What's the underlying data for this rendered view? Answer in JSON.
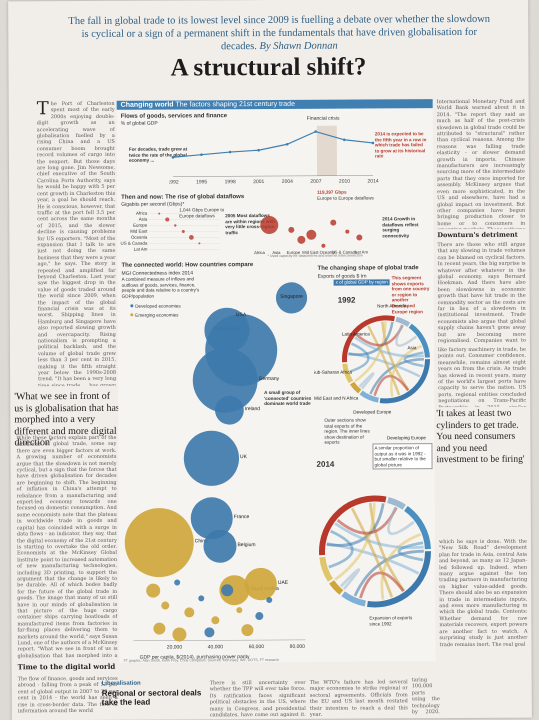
{
  "deck": {
    "line": "The fall in global trade to its lowest level since 2009 is fuelling a debate over whether the slowdown is cyclical or a sign of a permanent shift in the fundamentals that have driven globalisation for decades.",
    "byline": "By Shawn Donnan"
  },
  "headline": "A structural shift?",
  "columns": {
    "left_top": "he Port of Charleston spent most of the early 2000s enjoying double-digit growth as an accelerating wave of globalisation fuelled by a rising China and a US consumer boom brought record volumes of cargo into the seaport. But those days are long gone. Jim Newsome, chief executive of the South Carolina Ports Authority, says he would be happy with 5 per cent growth in Charleston this year, a goal he should reach. He is conscious, however, that traffic at the port fell 3.5 per cent across the same months of 2015, and the slower decline is causing problems for US exporters. \"Most of the expansion that I talk to are just not doing the same business that they were a year ago,\" he says. The story is repeated and amplified far beyond Charleston. Last year saw the biggest drop in the value of goods traded around the world since 2009, when the impact of the global financial crisis was at its worst. Shipping lines in Hamburg and Singapore have also reported slowing growth and overcapacity. Rising nationalism is prompting a political backlash, and the volume of global trade grew less than 3 per cent in 2015, making it the fifth straight year below the 1990s-2008 trend. \"It has been a very long time since trade ... has grown this weakly,\" says Robert Koopman, chief economist at the World Trade Organisation. Much of this recent feeble performance is down to the economic slowdown in China and the knock-on effect that the falling demand for raw materials has had on other emerging markets.",
    "left_bottom": "While these factors explain part of the weakness in global trade, some say there are even bigger factors at work. A growing number of economists argue that the slowdown is not merely cyclical, but a sign that the forces that have driven globalisation for decades are beginning to shift. The beginning of inflation in China's attempt to rebalance from a manufacturing and export-led economy towards one focused on domestic consumption. And some economists note that the plateau in worldwide trade in goods and capital has coincided with a surge in data flows - an indicator, they say, that the digital economy of the 21st century is starting to overtake the old order. Economists at the McKinsey Global Institute point to increased automation of new manufacturing technologies, including 3D printing, to support the argument that the change is likely to be durable. All of which bodes badly for the future of the global trade in goods. The image that many of us still have in our minds of globalisation is that picture of the huge cargo container ships carrying boatloads of manufactured items from factories in far-flung places delivering them to markets around the world,\" says Susan Lund, one of the authors of a McKinsey report. \"What we see in front of us is globalisation that has morphed into a very different and more digital direction.\"",
    "left_sub": "Time to the digital world",
    "left_tail": "The flow of finance, goods and services abroad - falling from a peak of 53 per cent of global output in 2007 to 39 per cent in 2014 - the world has seen a rise in cross-border data. The flow of information around the world",
    "right_top": "International Monetary Fund and World Bank warned about it in 2014. \"The report they said as much as half of the post-crisis slowdown in global trade could be attributed to \"structural\" rather than cyclical reasons. Among the reasons was falling trade elasticity - or slower demand growth in imports. Chinese manufacturers are increasingly sourcing more of the intermediate parts that they once imported for assembly. McKinsey argues that even more sophisticated, in the US and elsewhere, have had a global impact on investment. But other companies have begun bringing production closer to home or to consumers in emerging markets. Those patterns are apparent in the data, with the global flow of emerging-market trade in goods growing faster than trade between developed economies.",
    "right_sub": "Downturn's detriment",
    "right_mid": "There are those who still argue that any slowing in trade volumes can be blamed on cyclical factors. In recent years, the big surprise is whatever after whatever in the global economy, says Bernard Hoekman. And there have also been slowdowns in economic growth that have hit trade in the commodity sector as the costs are far in lieu of a slowdown in institutional investment. Trade economists also argue that global supply chains haven't gone away but are becoming more regionalised. Companies want to consider their options, and the shifting geography of US demand and supply suggests that a slowdown in world trade is unlikely to last.",
    "right_lower": "like factory machinery in trade, he points out. Consumer confidence, meanwhile, remains almost eight years on from the crisis. As trade has slowed in recent years, many of the world's largest ports have capacity to serve the nation. US ports, regional entities concluded negotiations on Trans-Pacific Partnership in 2015, similar efforts under way in Washington and Brussels and Asia. But any economist likely to take years to make the subject of intense scrutiny. Mr Koopman and others also point to a slowdown in global investment.",
    "right_tail": "which he says is done. With the \"New Silk Road\" development plan for trade in Asia, central Asia and beyond, as many as 12 Japan-led followed up. Indeed, when many argue against the ten trading partners in manufacturing on higher value-added goods. There should also be an expansion in trade in intermediate inputs, and even more manufacturing in which the global trade. Contents: Whether demand for raw materials recovers, export powers are another fact to watch. A surprising study is just another trade remains inert. The real goal",
    "bottom_mid": "taring 100,000 parts using the technology by 2020. Such innovations bring closer the day when companies make much greater use of the capacity to receive equipment not by container ship, but by digital file and a software-enabled 3D printer",
    "bottom_left": "There is still uncertainty over whether the TPP will ever take force. Its ratification faces significant political obstacles in the US, where many in Congress, and presidential candidates, have come out against it. The deal's unpopularity is in part a response to the perceived impact of trade on jobs.",
    "bottom_right": "The WTO's failure has led several major economies to strike regional or sectoral agreements. Officials from the EU and US last month restated their intention to reach a deal this year.",
    "liberalisation_kicker": "Liberalisation",
    "liberalisation_head": "Regional or sectoral deals take the lead"
  },
  "pullquotes": {
    "left": "'What we see in front of us is globalisation that has morphed into a very different and more digital direction'",
    "right": "'It takes at least two cylinders to get trade. You need consumers and you need investment to be firing'"
  },
  "graphic": {
    "header_main": "Changing world",
    "header_sub": "The factors shaping 21st century trade",
    "flows": {
      "title": "Flows of goods, services and finance",
      "subtitle": "% of global GDP",
      "crisis_label": "Financial crisis",
      "note_left": "For decades, trade grew at twice the rate of the global economy ...",
      "note_right": "2014 is expected to be the fifth year in a row in which trade has failed to grow at its historical rate",
      "years": [
        "1992",
        "1995",
        "1998",
        "2001",
        "2004",
        "2007",
        "2010",
        "2014"
      ],
      "values": [
        23,
        26,
        29,
        31,
        38,
        53,
        43,
        39
      ]
    },
    "datarise": {
      "title": "Then and now: The rise of global dataflows",
      "subtitle": "Gigabits per second (Gbps)*",
      "from_label": "1,044 Gbps Europe to Europe dataflows",
      "peak_label": "119,397 Gbps",
      "peak_note": "Europe to Europe dataflows",
      "note_2005": "2005 Most dataflows are within regions with very little cross-region traffic",
      "note_2014": "2014 Growth in dataflows reflect surging connectivity",
      "regions": [
        "Africa",
        "Asia",
        "Europe",
        "Mid East",
        "Oceania",
        "US & Canada",
        "Lat Am"
      ],
      "footnote": "* Used capacity for datacentres and internet interconnection"
    },
    "connected": {
      "title": "The connected world: How countries compare",
      "subtitle": "MGI Connectedness index 2014",
      "description": "A combined measure of inflows and outflows of goods, services, finance, people and data relative to a country's GDP/population",
      "legend_developed": "Developed economies",
      "legend_emerging": "Emerging economies",
      "xlabel": "GDP per capita, $(2014), purchasing power parity",
      "x_ticks": [
        "20,000",
        "40,000",
        "60,000",
        "80,000"
      ],
      "annotation": "A small group of 'connected' countries dominate world trade",
      "bubbles": [
        {
          "name": "Singapore",
          "group": "developed",
          "gdp_pc": 79000,
          "size": 0.32
        },
        {
          "name": "Netherlands",
          "group": "developed",
          "gdp_pc": 47000,
          "size": 0.55
        },
        {
          "name": "USA",
          "group": "developed",
          "gdp_pc": 54000,
          "size": 1.0
        },
        {
          "name": "Germany",
          "group": "developed",
          "gdp_pc": 46000,
          "size": 0.88
        },
        {
          "name": "Ireland",
          "group": "developed",
          "gdp_pc": 48000,
          "size": 0.28
        },
        {
          "name": "UK",
          "group": "developed",
          "gdp_pc": 39000,
          "size": 0.72
        },
        {
          "name": "China",
          "group": "emerging",
          "gdp_pc": 13000,
          "size": 0.95
        },
        {
          "name": "France",
          "group": "developed",
          "gdp_pc": 39000,
          "size": 0.5
        },
        {
          "name": "Belgium",
          "group": "developed",
          "gdp_pc": 43000,
          "size": 0.35
        },
        {
          "name": "Saudi Arabia",
          "group": "emerging",
          "gdp_pc": 50000,
          "size": 0.3
        },
        {
          "name": "UAE",
          "group": "emerging",
          "gdp_pc": 63000,
          "size": 0.34
        }
      ]
    },
    "changing_shape": {
      "title": "The changing shape of global trade",
      "subtitle": "Exports of goods $ trn",
      "sample_label": "x of global GDP by region",
      "year_1992": "1992",
      "year_2014": "2014",
      "note_segment": "This segment shows exports from one country or region to another Developed Europe region",
      "note_outer": "Outer sections show total exports of the region. The inner lines show destination of exports",
      "note_proportion": "A similar proportion of output as it was in 1992 - but smaller relative to the global picture",
      "expansion_label": "Expansion of exports since 1992",
      "regions": [
        "North America",
        "Latin America",
        "Sub-Saharan Africa",
        "Mid East and N Africa",
        "Developed Europe",
        "Developing Europe",
        "Asia"
      ]
    },
    "credit": "FT graphic: Alan Smith, Keith Frey, Chris Campbell | Sources: McKinsey, IMF, DOTS, FT research"
  },
  "colors": {
    "accent_blue": "#3f7fb2",
    "bubble_blue": "#3e79ad",
    "emerging_gold": "#cfa63c",
    "data_red": "#b8382b",
    "deck_blue": "#2d5f86"
  }
}
